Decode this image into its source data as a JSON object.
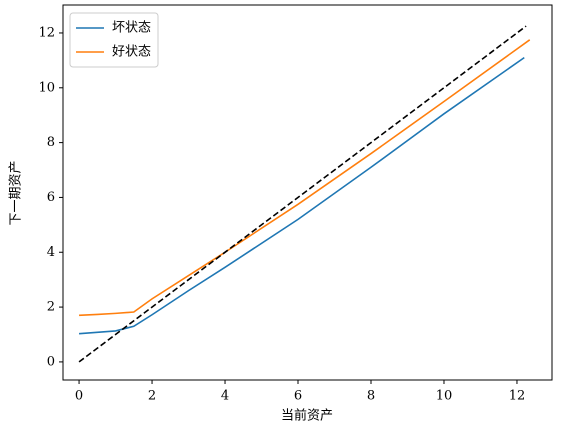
{
  "chart_data": {
    "type": "line",
    "xlabel": "当前资产",
    "ylabel": "下一期资产",
    "xlim": [
      -0.44,
      12.96
    ],
    "ylim": [
      -0.66,
      13.02
    ],
    "xticks": [
      0,
      2,
      4,
      6,
      8,
      10,
      12
    ],
    "yticks": [
      0,
      2,
      4,
      6,
      8,
      10,
      12
    ],
    "legend": "upper left",
    "series": [
      {
        "name": "坏状态",
        "color": "#1f77b4",
        "x": [
          0,
          0.5,
          1.0,
          1.5,
          2,
          3,
          4,
          6,
          8,
          10,
          12.2
        ],
        "values": [
          1.03,
          1.08,
          1.13,
          1.3,
          1.72,
          2.6,
          3.45,
          5.2,
          7.1,
          9.05,
          11.1
        ]
      },
      {
        "name": "好状态",
        "color": "#ff7f0e",
        "x": [
          0,
          0.5,
          1.0,
          1.5,
          2,
          3,
          4,
          6,
          8,
          10,
          12.35
        ],
        "values": [
          1.7,
          1.73,
          1.77,
          1.82,
          2.3,
          3.15,
          4.0,
          5.75,
          7.6,
          9.5,
          11.75
        ]
      },
      {
        "color": "#000000",
        "dash": true,
        "x": [
          0,
          12.25
        ],
        "values": [
          0,
          12.25
        ]
      }
    ]
  }
}
